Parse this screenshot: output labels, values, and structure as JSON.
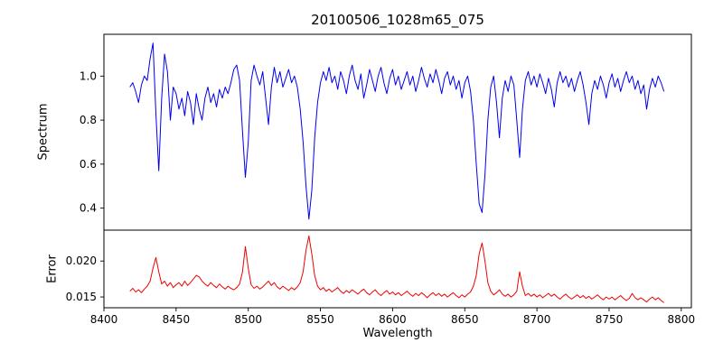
{
  "chart_data": {
    "type": "line",
    "title": "20100506_1028m65_075",
    "xlabel": "Wavelength",
    "xlim": [
      8400,
      8807
    ],
    "xticks": [
      8400,
      8450,
      8500,
      8550,
      8600,
      8650,
      8700,
      8750,
      8800
    ],
    "xtick_labels": [
      "8400",
      "8450",
      "8500",
      "8550",
      "8600",
      "8650",
      "8700",
      "8750",
      "8800"
    ],
    "grid": false,
    "legend": "none",
    "panels": [
      {
        "ylabel": "Spectrum",
        "color": "#0000ee",
        "ylim": [
          0.3,
          1.19
        ],
        "yticks": [
          0.4,
          0.6,
          0.8,
          1.0
        ],
        "ytick_labels": [
          "0.4",
          "0.6",
          "0.8",
          "1.0"
        ],
        "series": {
          "name": "spectrum",
          "x_start": 8418,
          "x_step": 2,
          "values": [
            0.95,
            0.97,
            0.93,
            0.88,
            0.96,
            1.0,
            0.98,
            1.08,
            1.15,
            0.83,
            0.57,
            0.9,
            1.1,
            1.02,
            0.8,
            0.95,
            0.92,
            0.85,
            0.9,
            0.82,
            0.93,
            0.88,
            0.78,
            0.92,
            0.85,
            0.8,
            0.9,
            0.95,
            0.88,
            0.92,
            0.86,
            0.94,
            0.9,
            0.95,
            0.92,
            0.97,
            1.03,
            1.05,
            0.98,
            0.75,
            0.54,
            0.7,
            0.98,
            1.05,
            1.0,
            0.96,
            1.02,
            0.9,
            0.78,
            0.95,
            1.04,
            0.97,
            1.02,
            0.95,
            0.99,
            1.03,
            0.97,
            1.0,
            0.95,
            0.85,
            0.7,
            0.5,
            0.35,
            0.48,
            0.72,
            0.88,
            0.97,
            1.02,
            0.98,
            1.04,
            0.97,
            1.0,
            0.94,
            1.02,
            0.98,
            0.92,
            1.0,
            1.05,
            0.98,
            0.94,
            1.01,
            0.9,
            0.96,
            1.03,
            0.98,
            0.93,
            1.0,
            1.04,
            0.97,
            0.92,
            0.99,
            1.03,
            0.96,
            1.0,
            0.94,
            0.98,
            1.02,
            0.96,
            1.0,
            0.93,
            0.98,
            1.04,
            0.99,
            0.95,
            1.01,
            0.97,
            1.03,
            0.98,
            0.92,
            0.99,
            1.02,
            0.96,
            1.0,
            0.94,
            0.98,
            0.9,
            0.97,
            1.0,
            0.93,
            0.8,
            0.6,
            0.42,
            0.38,
            0.55,
            0.8,
            0.95,
            1.0,
            0.88,
            0.72,
            0.9,
            0.98,
            0.93,
            1.0,
            0.96,
            0.8,
            0.63,
            0.85,
            0.98,
            1.02,
            0.96,
            1.0,
            0.95,
            1.01,
            0.97,
            0.92,
            0.99,
            0.94,
            0.86,
            0.97,
            1.02,
            0.97,
            1.0,
            0.95,
            0.99,
            0.93,
            0.98,
            1.02,
            0.96,
            0.88,
            0.78,
            0.92,
            0.98,
            0.94,
            1.0,
            0.96,
            0.9,
            0.97,
            1.01,
            0.95,
            0.99,
            0.93,
            0.98,
            1.02,
            0.97,
            1.0,
            0.94,
            0.98,
            0.92,
            0.96,
            0.85,
            0.94,
            0.99,
            0.95,
            1.0,
            0.97,
            0.93
          ]
        }
      },
      {
        "ylabel": "Error",
        "color": "#ee0000",
        "ylim": [
          0.0135,
          0.0243
        ],
        "yticks": [
          0.015,
          0.02
        ],
        "ytick_labels": [
          "0.015",
          "0.020"
        ],
        "series": {
          "name": "error",
          "x_start": 8418,
          "x_step": 2,
          "values": [
            0.0158,
            0.0162,
            0.0157,
            0.016,
            0.0156,
            0.0161,
            0.0165,
            0.0172,
            0.019,
            0.0205,
            0.0185,
            0.0168,
            0.0172,
            0.0165,
            0.017,
            0.0163,
            0.0167,
            0.017,
            0.0165,
            0.0172,
            0.0166,
            0.017,
            0.0175,
            0.018,
            0.0178,
            0.0172,
            0.0168,
            0.0165,
            0.017,
            0.0166,
            0.0163,
            0.0168,
            0.0164,
            0.0161,
            0.0165,
            0.0162,
            0.016,
            0.0163,
            0.0168,
            0.0185,
            0.022,
            0.019,
            0.0167,
            0.0162,
            0.0165,
            0.0161,
            0.0164,
            0.0168,
            0.0172,
            0.0166,
            0.017,
            0.0164,
            0.0161,
            0.0165,
            0.0162,
            0.0159,
            0.0163,
            0.016,
            0.0164,
            0.017,
            0.0185,
            0.0215,
            0.0235,
            0.021,
            0.018,
            0.0165,
            0.016,
            0.0163,
            0.0158,
            0.0161,
            0.0157,
            0.016,
            0.0163,
            0.0158,
            0.0155,
            0.0159,
            0.0156,
            0.016,
            0.0157,
            0.0154,
            0.0158,
            0.0161,
            0.0156,
            0.0153,
            0.0157,
            0.016,
            0.0155,
            0.0152,
            0.0156,
            0.0159,
            0.0154,
            0.0157,
            0.0153,
            0.0156,
            0.0152,
            0.0155,
            0.0158,
            0.0154,
            0.0151,
            0.0155,
            0.0152,
            0.0156,
            0.0153,
            0.0149,
            0.0153,
            0.0156,
            0.0152,
            0.0155,
            0.0151,
            0.0154,
            0.015,
            0.0153,
            0.0156,
            0.0152,
            0.0149,
            0.0153,
            0.015,
            0.0154,
            0.0157,
            0.0165,
            0.018,
            0.021,
            0.0225,
            0.02,
            0.017,
            0.0158,
            0.0153,
            0.0156,
            0.016,
            0.0154,
            0.0151,
            0.0154,
            0.015,
            0.0153,
            0.0158,
            0.0185,
            0.0165,
            0.0152,
            0.0155,
            0.0151,
            0.0154,
            0.015,
            0.0153,
            0.0149,
            0.0152,
            0.0155,
            0.0151,
            0.0154,
            0.015,
            0.0147,
            0.0151,
            0.0154,
            0.015,
            0.0147,
            0.015,
            0.0153,
            0.0149,
            0.0152,
            0.0148,
            0.0151,
            0.0147,
            0.015,
            0.0153,
            0.0149,
            0.0146,
            0.015,
            0.0147,
            0.015,
            0.0146,
            0.0149,
            0.0152,
            0.0148,
            0.0145,
            0.0148,
            0.0155,
            0.0149,
            0.0146,
            0.0149,
            0.0146,
            0.0143,
            0.0147,
            0.015,
            0.0146,
            0.0149,
            0.0145,
            0.0142
          ]
        }
      }
    ]
  }
}
